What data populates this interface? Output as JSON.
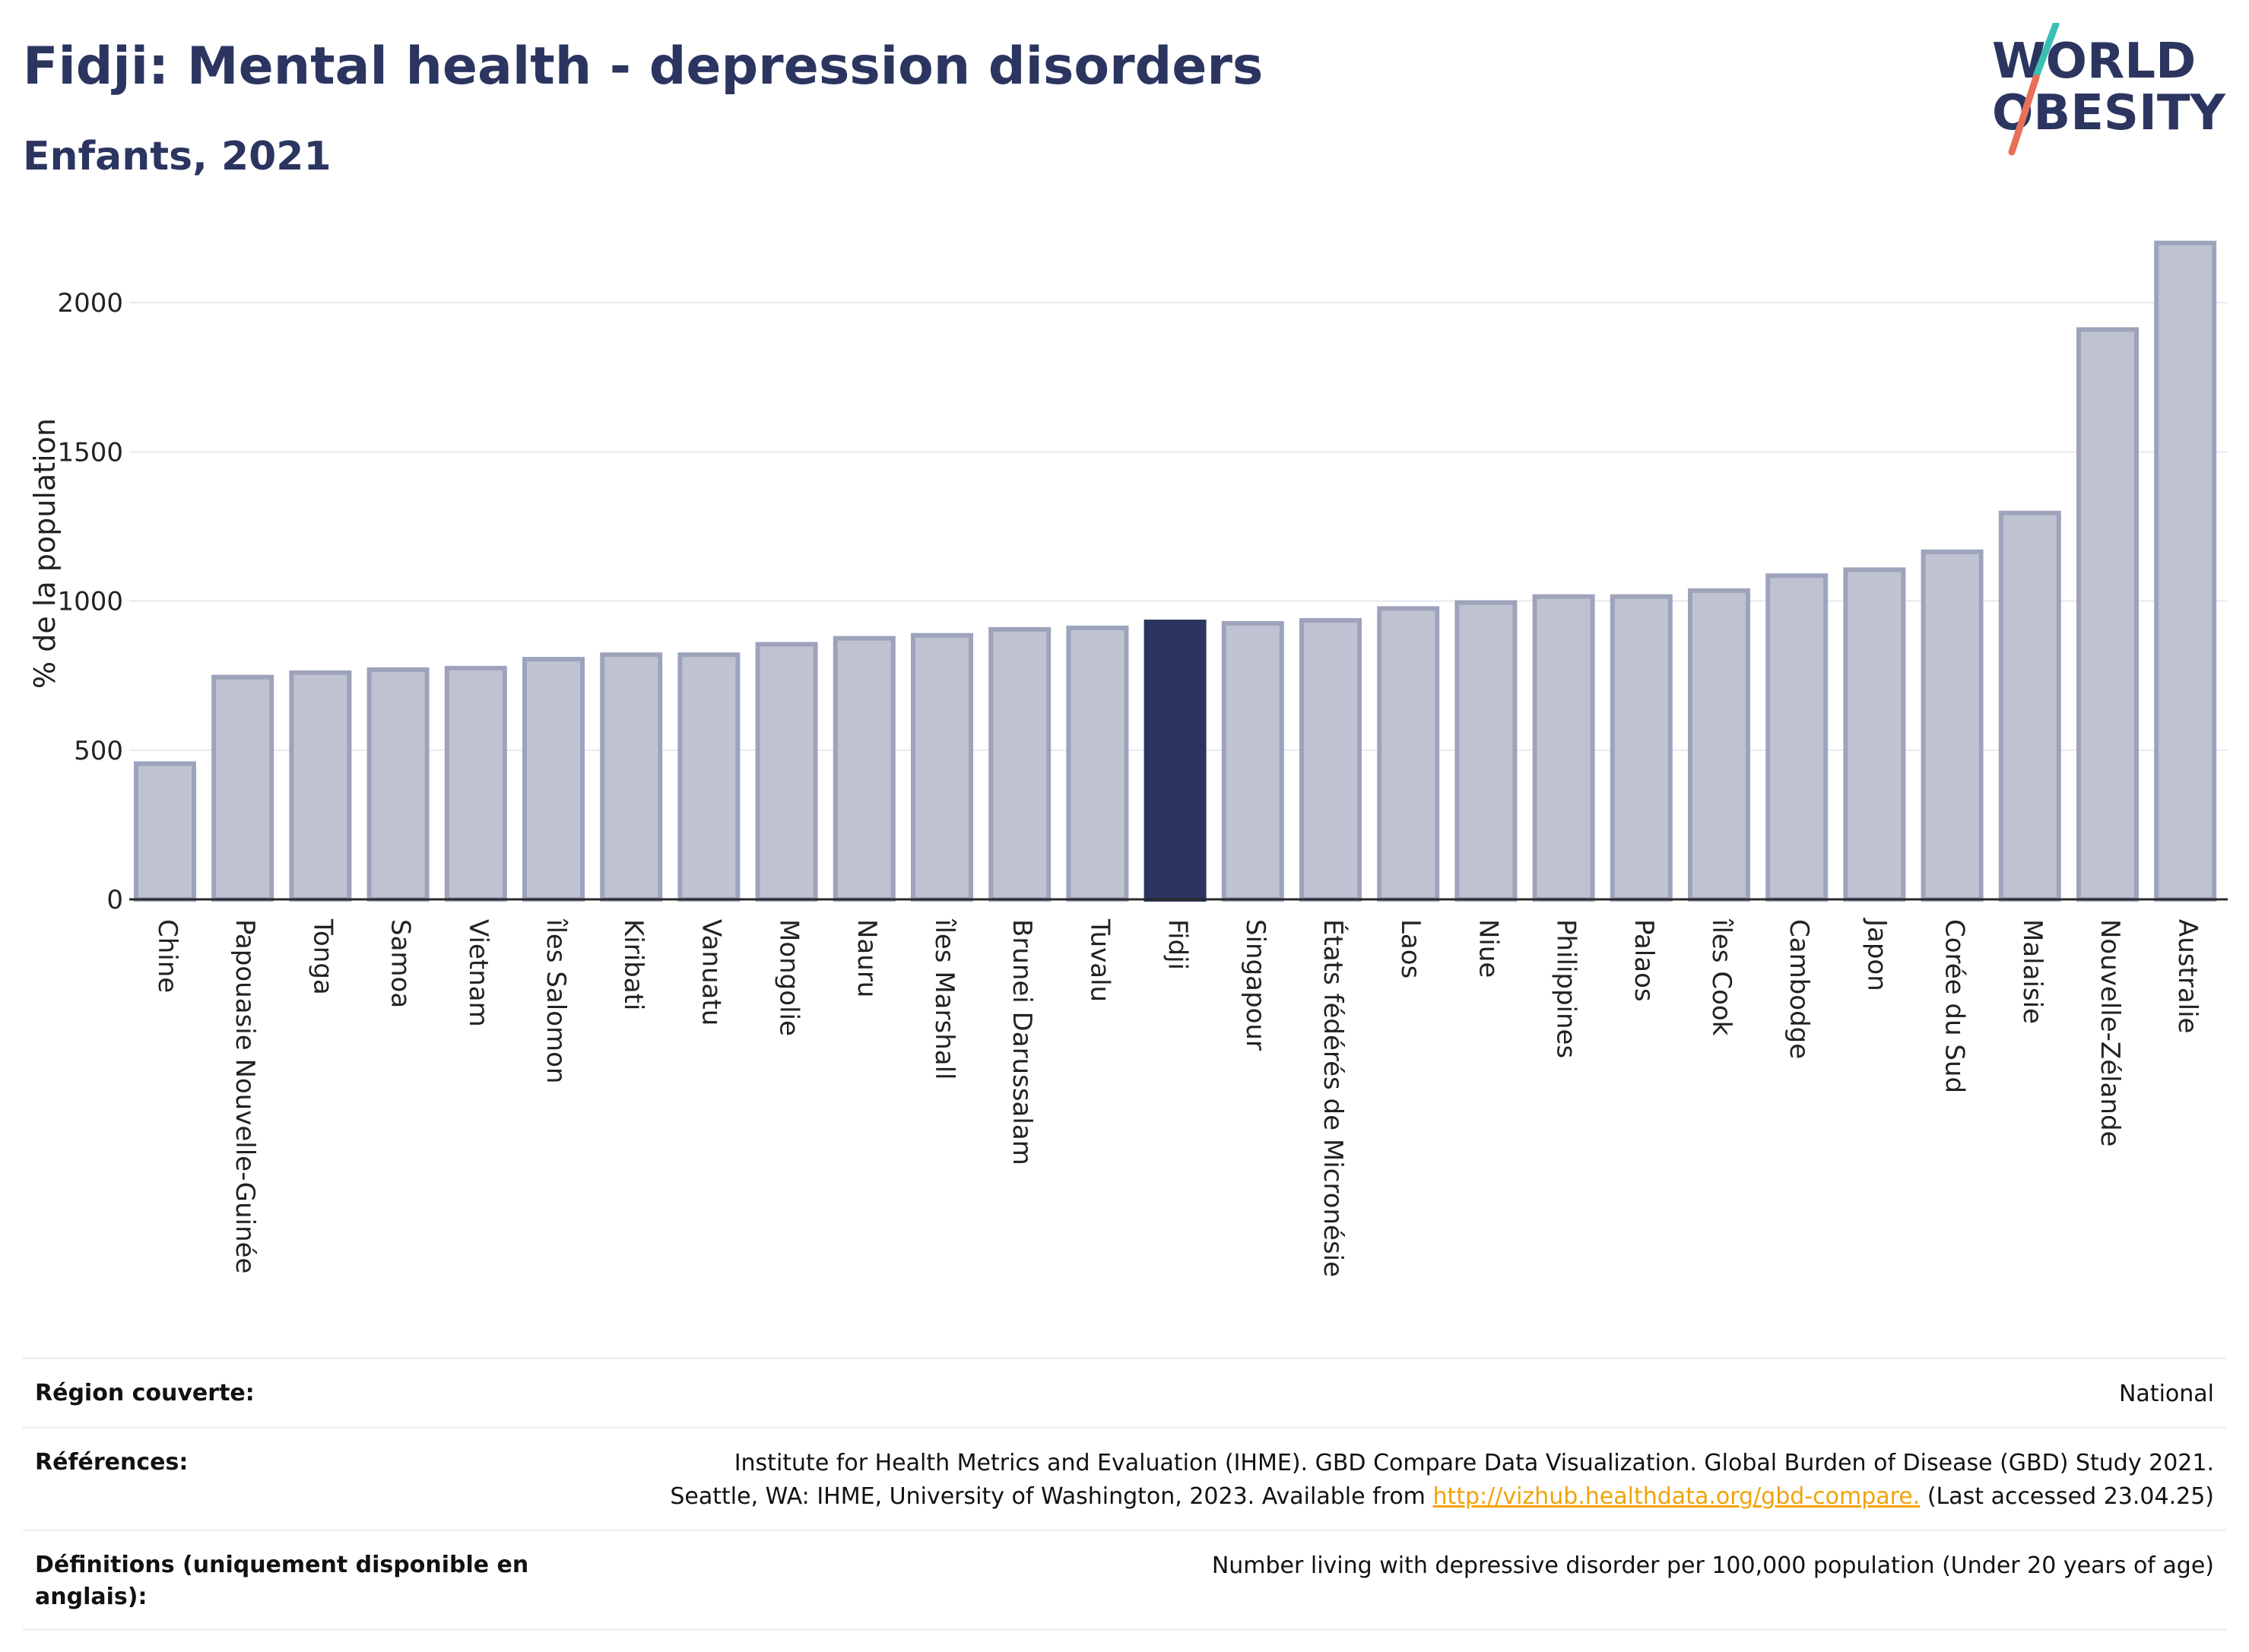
{
  "header": {
    "title": "Fidji: Mental health - depression disorders",
    "subtitle": "Enfants, 2021"
  },
  "logo": {
    "line1": "WORLD",
    "line2": "OBESITY",
    "text_color": "#2b3560",
    "slash_top_color": "#3bbfb5",
    "slash_bottom_color": "#e8705a"
  },
  "colors": {
    "highlight_bar": "#2b3560",
    "other_bar_fill": "#bfc3d1",
    "other_bar_stroke": "#9da3bb",
    "link": "#f0a30a"
  },
  "chart_data": {
    "type": "bar",
    "title": "Fidji: Mental health - depression disorders",
    "subtitle": "Enfants, 2021",
    "ylabel": "% de la population",
    "xlabel": "",
    "ylim": [
      0,
      2250
    ],
    "yticks": [
      0,
      500,
      1000,
      1500,
      2000
    ],
    "grid": true,
    "highlight": "Fidji",
    "categories": [
      "Chine",
      "Papouasie Nouvelle-Guinée",
      "Tonga",
      "Samoa",
      "Vietnam",
      "îles Salomon",
      "Kiribati",
      "Vanuatu",
      "Mongolie",
      "Nauru",
      "îles Marshall",
      "Brunei Darussalam",
      "Tuvalu",
      "Fidji",
      "Singapour",
      "États fédérés de Micronésie",
      "Laos",
      "Niue",
      "Philippines",
      "Palaos",
      "îles Cook",
      "Cambodge",
      "Japon",
      "Corée du Sud",
      "Malaisie",
      "Nouvelle-Zélande",
      "Australie"
    ],
    "values": [
      455,
      745,
      760,
      770,
      775,
      805,
      820,
      820,
      855,
      875,
      885,
      905,
      910,
      930,
      925,
      935,
      975,
      995,
      1015,
      1015,
      1035,
      1085,
      1105,
      1165,
      1295,
      1910,
      2200
    ]
  },
  "info": {
    "region_label": "Région couverte:",
    "region_value": "National",
    "refs_label": "Références:",
    "refs_line1": "Institute for Health Metrics and Evaluation (IHME). GBD Compare Data Visualization. Global Burden of Disease (GBD) Study 2021.",
    "refs_line2_pre": "Seattle, WA: IHME, University of Washington, 2023. Available from ",
    "refs_link": "http://vizhub.healthdata.org/gbd-compare.",
    "refs_line2_post": " (Last accessed 23.04.25)",
    "defs_label": "Définitions (uniquement disponible en anglais):",
    "defs_value": "Number living with depressive disorder per 100,000 population (Under 20 years of age)"
  }
}
